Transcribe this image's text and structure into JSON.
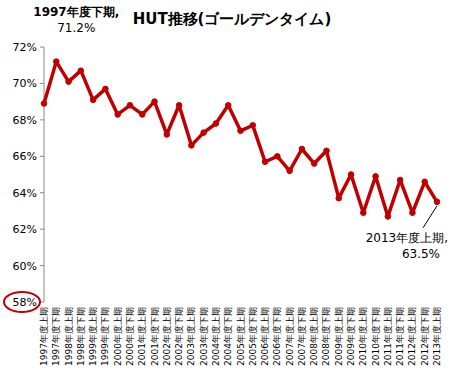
{
  "chart_data": {
    "type": "line",
    "title": "HUT推移(ゴールデンタイム)",
    "categories": [
      "1997年度上期",
      "1997年度下期",
      "1998年度上期",
      "1998年度下期",
      "1999年度上期",
      "1999年度下期",
      "2000年度上期",
      "2000年度下期",
      "2001年度上期",
      "2001年度下期",
      "2002年度上期",
      "2002年度下期",
      "2003年度上期",
      "2003年度下期",
      "2004年度上期",
      "2004年度下期",
      "2005年度上期",
      "2005年度下期",
      "2006年度上期",
      "2006年度下期",
      "2007年度上期",
      "2007年度下期",
      "2008年度上期",
      "2008年度下期",
      "2009年度上期",
      "2009年度下期",
      "2010年度上期",
      "2010年度下期",
      "2011年度上期",
      "2011年度下期",
      "2012年度上期",
      "2012年度下期",
      "2013年度上期"
    ],
    "values": [
      68.9,
      71.2,
      70.1,
      70.7,
      69.1,
      69.7,
      68.3,
      68.8,
      68.3,
      69.0,
      67.2,
      68.8,
      66.6,
      67.3,
      67.8,
      68.8,
      67.4,
      67.7,
      65.7,
      66.0,
      65.2,
      66.4,
      65.6,
      66.3,
      63.7,
      65.0,
      62.9,
      64.9,
      62.7,
      64.7,
      62.9,
      64.6,
      63.5
    ],
    "color": "#c00000",
    "marker": "circle",
    "ylim": [
      58,
      72
    ],
    "yticks": [
      {
        "value": 58,
        "label": "58%"
      },
      {
        "value": 60,
        "label": "60%"
      },
      {
        "value": 62,
        "label": "62%"
      },
      {
        "value": 64,
        "label": "64%"
      },
      {
        "value": 66,
        "label": "66%"
      },
      {
        "value": 68,
        "label": "68%"
      },
      {
        "value": 70,
        "label": "70%"
      },
      {
        "value": 72,
        "label": "72%"
      }
    ],
    "grid": false,
    "annotations": [
      {
        "x": "1997年度下期",
        "text": [
          "1997年度下期,",
          "71.2%"
        ]
      },
      {
        "x": "2013年度上期",
        "text": [
          "2013年度上期,",
          "63.5%"
        ]
      }
    ]
  }
}
